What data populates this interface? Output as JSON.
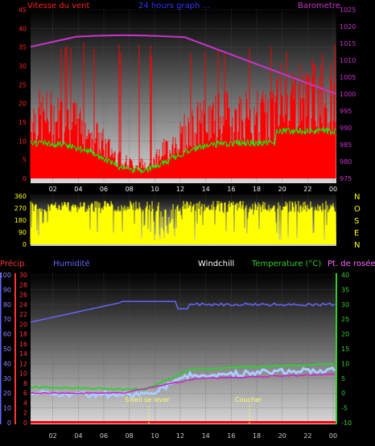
{
  "panel1": {
    "title_left": "Vitesse du vent",
    "title_center": "24 hours graph ...",
    "title_right": "Barometre",
    "left_ticks": [
      "45",
      "40",
      "35",
      "30",
      "25",
      "20",
      "15",
      "10",
      "5",
      "0"
    ],
    "right_ticks": [
      "1025",
      "1020",
      "1015",
      "1010",
      "1005",
      "1000",
      "995",
      "990",
      "985",
      "980",
      "975"
    ]
  },
  "panel2": {
    "left_ticks": [
      "360",
      "270",
      "180",
      "90",
      "0"
    ],
    "compass": [
      "N",
      "O",
      "S",
      "E",
      "N"
    ]
  },
  "panel3": {
    "label_precip": "Précip.",
    "label_humidity": "Humidité",
    "label_windchill": "Windchill",
    "label_temperature": "Temperature (°C)",
    "label_dewpoint": "Pt. de rosée",
    "hum_ticks": [
      "100",
      "90",
      "80",
      "70",
      "60",
      "50",
      "40",
      "30",
      "20",
      "10",
      "0"
    ],
    "precip_ticks": [
      "30",
      "28",
      "26",
      "24",
      "22",
      "20",
      "18",
      "16",
      "14",
      "12",
      "10",
      "8",
      "6",
      "4",
      "2",
      "0"
    ],
    "temp_ticks": [
      "40",
      "35",
      "30",
      "25",
      "20",
      "15",
      "10",
      "5",
      "0",
      "-5",
      "-10"
    ],
    "sunrise": "Soleil se lever",
    "sunset": "Coucher"
  },
  "x_ticks": [
    "02",
    "04",
    "06",
    "08",
    "10",
    "12",
    "14",
    "16",
    "18",
    "20",
    "22",
    "00"
  ],
  "colors": {
    "wind": "#ff0000",
    "gust_green": "#00ff00",
    "barometer": "#cc33cc",
    "direction": "#ffff00",
    "humidity": "#6666ff",
    "temperature": "#33cc33",
    "dewpoint": "#cc22cc",
    "windchill": "#aaccff",
    "precip_axis": "#ff3333"
  }
}
